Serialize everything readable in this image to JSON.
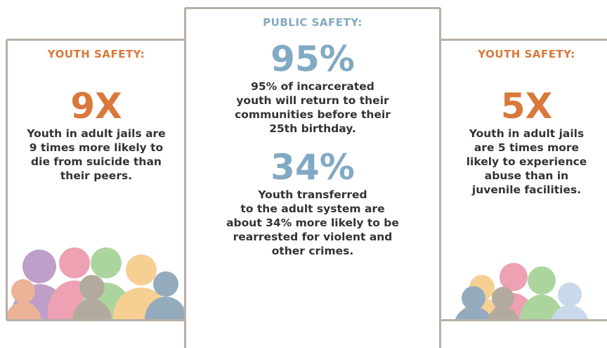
{
  "cards": [
    {
      "label": "YOUTH SAFETY:",
      "stats": [
        {
          "figure": "9X",
          "lines": [
            "Youth in adult jails are",
            "9 times more likely to",
            "die from suicide than",
            "their peers."
          ]
        }
      ]
    },
    {
      "label": "PUBLIC SAFETY:",
      "stats": [
        {
          "figure": "95%",
          "lines": [
            "95% of incarcerated",
            "youth will return to their",
            "communities before their",
            "25th birthday."
          ]
        },
        {
          "figure": "34%",
          "lines": [
            "Youth transferred",
            "to the adult system are",
            "about 34% more likely to be",
            "rearrested for violent and",
            "other crimes."
          ]
        }
      ]
    },
    {
      "label": "YOUTH SAFETY:",
      "stats": [
        {
          "figure": "5X",
          "lines": [
            "Youth in adult jails",
            "are 5 times more",
            "likely to experience",
            "abuse than in",
            "juvenile facilities."
          ]
        }
      ]
    }
  ]
}
